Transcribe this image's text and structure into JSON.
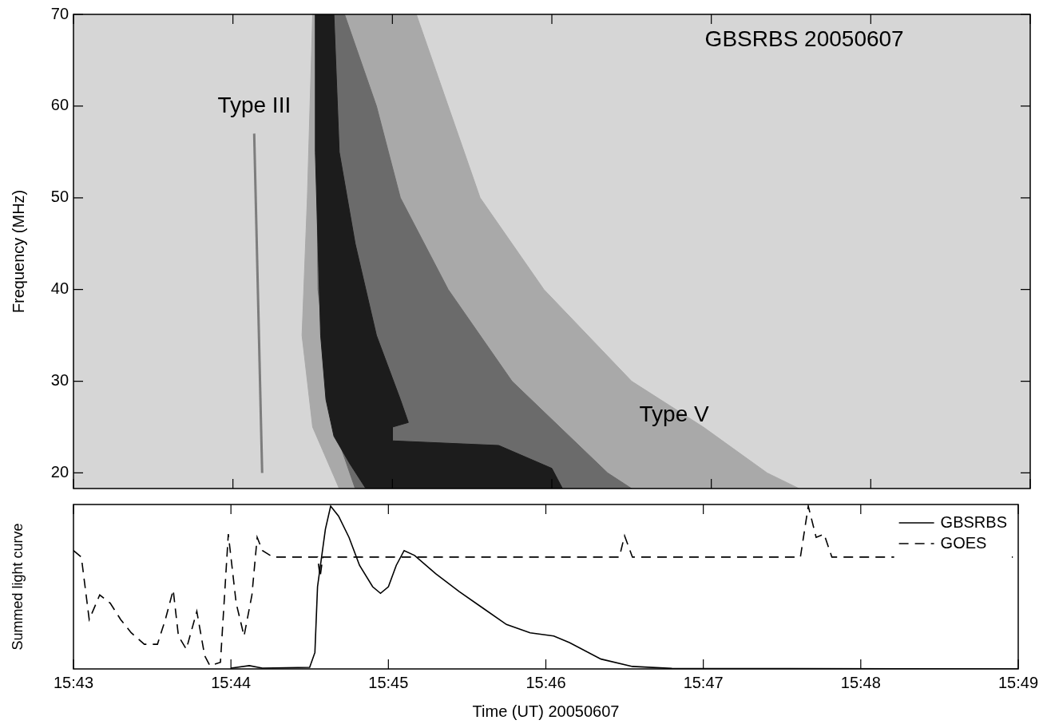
{
  "chart_data": [
    {
      "type": "area",
      "ylabel": "Frequency (MHz)",
      "xlim": [
        "15:43",
        "15:49"
      ],
      "xticks": [
        "15:43",
        "15:44",
        "15:45",
        "15:46",
        "15:47",
        "15:48",
        "15:49"
      ],
      "ylim": [
        18.3,
        70
      ],
      "yticks": [
        20,
        30,
        40,
        50,
        60,
        70
      ],
      "grid": false,
      "tick_labels": "y",
      "annotations": [
        {
          "text": "Type III",
          "x": "15:44:08",
          "y": 60
        },
        {
          "text": "Type V",
          "x": "15:46:46",
          "y": 26.3
        },
        {
          "text": "GBSRBS 20050607",
          "x": "15:47:35",
          "y": 67.2
        }
      ],
      "series": [
        {
          "type": "area",
          "color": "#a9a9a9",
          "x": [
            "15:44:30",
            "15:45:09",
            "15:45:21",
            "15:45:33",
            "15:45:57",
            "15:46:30",
            "15:46:57",
            "15:47:21",
            "15:47:33",
            "15:44:40",
            "15:44:30",
            "15:44:26",
            "15:44:28",
            "15:44:30"
          ],
          "values": [
            70,
            70,
            60,
            50,
            40,
            30,
            25,
            20,
            18.3,
            18.3,
            25,
            35,
            50,
            70
          ]
        },
        {
          "type": "area",
          "color": "#6b6b6b",
          "x": [
            "15:44:31",
            "15:44:42",
            "15:44:54",
            "15:45:03",
            "15:45:21",
            "15:45:45",
            "15:46:03",
            "15:46:21",
            "15:46:30",
            "15:44:46",
            "15:44:38",
            "15:44:32",
            "15:44:31"
          ],
          "values": [
            70,
            70,
            60,
            50,
            40,
            30,
            25,
            20,
            18.3,
            18.3,
            25,
            40,
            70
          ]
        },
        {
          "type": "area",
          "color": "#1c1c1c",
          "x": [
            "15:44:31",
            "15:44:38",
            "15:44:40",
            "15:44:46",
            "15:44:54",
            "15:45:03",
            "15:45:06",
            "15:45:00",
            "15:45:00",
            "15:45:40",
            "15:46:00",
            "15:46:04",
            "15:44:50",
            "15:44:44",
            "15:44:38",
            "15:44:35",
            "15:44:33",
            "15:44:32",
            "15:44:31",
            "15:44:31"
          ],
          "values": [
            70,
            70,
            55,
            45,
            35,
            28,
            25.5,
            25,
            23.5,
            23,
            20.5,
            18.3,
            18.3,
            21,
            24,
            28,
            35,
            45,
            55,
            70
          ]
        },
        {
          "type": "line",
          "color": "#7d7d7d",
          "x": [
            "15:44:08",
            "15:44:11"
          ],
          "values": [
            57,
            20
          ]
        }
      ]
    },
    {
      "type": "line",
      "xlabel": "Time (UT) 20050607",
      "ylabel": "Summed light curve",
      "xlim": [
        "15:43",
        "15:49"
      ],
      "xticks": [
        "15:43",
        "15:44",
        "15:45",
        "15:46",
        "15:47",
        "15:48",
        "15:49"
      ],
      "ylim": [
        0,
        1
      ],
      "grid": false,
      "tick_labels": "x",
      "legend": "upper right",
      "series": [
        {
          "name": "GBSRBS",
          "color": "#000000",
          "line_style": "solid",
          "x": [
            "15:44:00",
            "15:44:07",
            "15:44:12",
            "15:44:30",
            "15:44:32",
            "15:44:33",
            "15:44:36",
            "15:44:38",
            "15:44:41",
            "15:44:45",
            "15:44:49",
            "15:44:54",
            "15:44:57",
            "15:45:00",
            "15:45:03",
            "15:45:06",
            "15:45:10",
            "15:45:18",
            "15:45:27",
            "15:45:36",
            "15:45:45",
            "15:45:54",
            "15:46:03",
            "15:46:09",
            "15:46:21",
            "15:46:33",
            "15:46:48",
            "15:49:00"
          ],
          "values": [
            0.005,
            0.02,
            0.005,
            0.01,
            0.1,
            0.5,
            0.85,
            0.99,
            0.93,
            0.8,
            0.63,
            0.5,
            0.46,
            0.5,
            0.63,
            0.72,
            0.69,
            0.58,
            0.47,
            0.37,
            0.27,
            0.22,
            0.2,
            0.16,
            0.06,
            0.015,
            0.003,
            0
          ]
        },
        {
          "name": "GOES",
          "color": "#000000",
          "line_style": "dashed",
          "x": [
            "15:43:00",
            "15:43:03",
            "15:43:06",
            "15:43:10",
            "15:43:14",
            "15:43:18",
            "15:43:22",
            "15:43:27",
            "15:43:32",
            "15:43:35",
            "15:43:38",
            "15:43:40",
            "15:43:43",
            "15:43:47",
            "15:43:50",
            "15:43:52",
            "15:43:56",
            "15:43:59",
            "15:44:02",
            "15:44:05",
            "15:44:08",
            "15:44:10",
            "15:44:12",
            "15:44:16",
            "15:44:33",
            "15:44:34",
            "15:44:35",
            "15:46:28",
            "15:46:30",
            "15:46:33",
            "15:47:37",
            "15:47:40",
            "15:47:43",
            "15:47:46",
            "15:47:49",
            "15:49:00"
          ],
          "values": [
            0.72,
            0.68,
            0.3,
            0.45,
            0.4,
            0.3,
            0.22,
            0.15,
            0.15,
            0.3,
            0.48,
            0.2,
            0.12,
            0.35,
            0.08,
            0.02,
            0.04,
            0.82,
            0.4,
            0.2,
            0.45,
            0.8,
            0.72,
            0.68,
            0.68,
            0.56,
            0.68,
            0.68,
            0.81,
            0.68,
            0.68,
            0.99,
            0.8,
            0.82,
            0.68,
            0.68
          ]
        }
      ]
    }
  ]
}
